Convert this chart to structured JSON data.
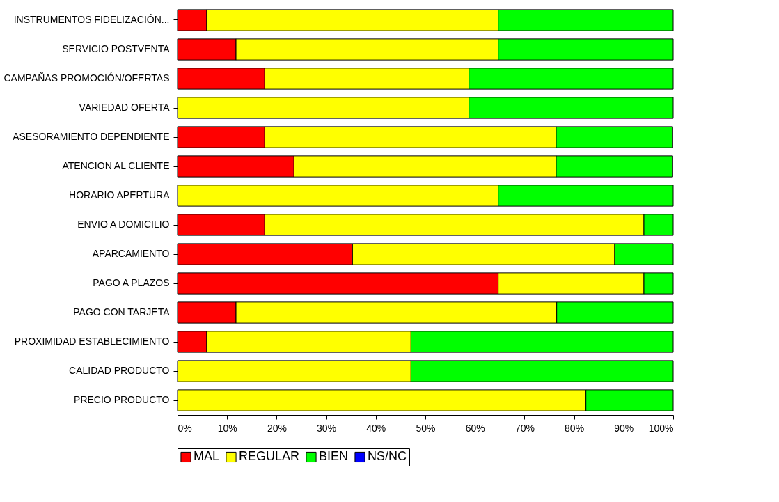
{
  "chart_data": {
    "type": "bar",
    "orientation": "horizontal",
    "stacked": true,
    "categories": [
      "INSTRUMENTOS FIDELIZACIÓN...",
      "SERVICIO POSTVENTA",
      "CAMPAÑAS PROMOCIÓN/OFERTAS",
      "VARIEDAD OFERTA",
      "ASESORAMIENTO DEPENDIENTE",
      "ATENCION AL CLIENTE",
      "HORARIO APERTURA",
      "ENVIO A DOMICILIO",
      "APARCAMIENTO",
      "PAGO A PLAZOS",
      "PAGO CON TARJETA",
      "PROXIMIDAD ESTABLECIMIENTO",
      "CALIDAD PRODUCTO",
      "PRECIO PRODUCTO"
    ],
    "series": [
      {
        "name": "MAL",
        "color": "#ff0000",
        "values": [
          5.9,
          11.8,
          17.6,
          0,
          17.6,
          23.5,
          0,
          17.6,
          35.3,
          64.7,
          11.8,
          5.9,
          0,
          0
        ]
      },
      {
        "name": "REGULAR",
        "color": "#ffff00",
        "values": [
          58.8,
          52.9,
          41.2,
          58.8,
          58.8,
          52.9,
          64.7,
          76.5,
          52.9,
          29.4,
          64.7,
          41.2,
          47.1,
          82.4
        ]
      },
      {
        "name": "BIEN",
        "color": "#00ff00",
        "values": [
          35.3,
          35.3,
          41.2,
          41.2,
          23.5,
          23.5,
          35.3,
          5.9,
          11.8,
          5.9,
          23.5,
          52.9,
          52.9,
          17.6
        ]
      },
      {
        "name": "NS/NC",
        "color": "#0000ff",
        "values": [
          0,
          0,
          0,
          0,
          0,
          0,
          0,
          0,
          0,
          0,
          0,
          0,
          0,
          0
        ]
      }
    ],
    "xlim": [
      0,
      100
    ],
    "xticks": [
      {
        "value": 0,
        "label": "0%"
      },
      {
        "value": 10,
        "label": "10%"
      },
      {
        "value": 20,
        "label": "20%"
      },
      {
        "value": 30,
        "label": "30%"
      },
      {
        "value": 40,
        "label": "40%"
      },
      {
        "value": 50,
        "label": "50%"
      },
      {
        "value": 60,
        "label": "60%"
      },
      {
        "value": 70,
        "label": "70%"
      },
      {
        "value": 80,
        "label": "80%"
      },
      {
        "value": 90,
        "label": "90%"
      },
      {
        "value": 100,
        "label": "100%"
      }
    ],
    "grid": false,
    "legend": "bottom"
  }
}
